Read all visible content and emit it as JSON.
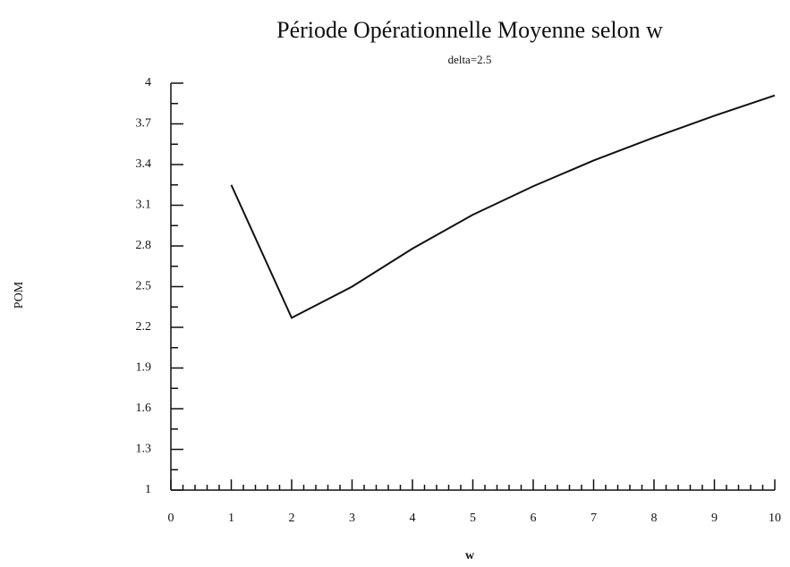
{
  "chart_data": {
    "type": "line",
    "title": "Période Opérationnelle Moyenne selon w",
    "subtitle": "delta=2.5",
    "x_label": "w",
    "y_label": "POM",
    "x": [
      1,
      2,
      3,
      4,
      5,
      6,
      7,
      8,
      9,
      10
    ],
    "series": [
      {
        "name": "POM",
        "color": "#111111",
        "values": [
          3.25,
          2.27,
          2.5,
          2.78,
          3.03,
          3.24,
          3.43,
          3.6,
          3.76,
          3.91
        ]
      }
    ],
    "xlim": [
      0,
      10
    ],
    "xticks": [
      0,
      1,
      2,
      3,
      4,
      5,
      6,
      7,
      8,
      9,
      10
    ],
    "ylim": [
      1,
      4
    ],
    "yticks": [
      1,
      1.3,
      1.6,
      1.9,
      2.2,
      2.5,
      2.8,
      3.1,
      3.4,
      3.7,
      4
    ],
    "grid": false
  }
}
